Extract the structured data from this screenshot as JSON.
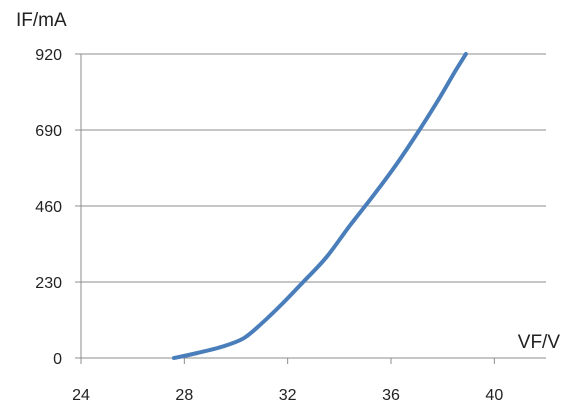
{
  "chart_data": {
    "type": "line",
    "title": "",
    "xlabel": "VF/V",
    "ylabel": "IF/mA",
    "xlim": [
      24,
      42
    ],
    "ylim": [
      0,
      920
    ],
    "x_ticks": [
      24,
      28,
      32,
      36,
      40
    ],
    "y_ticks": [
      0,
      230,
      460,
      690,
      920
    ],
    "x_tick_labels": [
      "24",
      "28",
      "32",
      "36",
      "40"
    ],
    "y_tick_labels": [
      "0",
      "230",
      "460",
      "690",
      "920"
    ],
    "grid": "horizontal",
    "colors": {
      "line": "#4a7ebb",
      "grid": "#8c8c8c",
      "axis": "#8c8c8c"
    },
    "series": [
      {
        "x": [
          27.6,
          28.5,
          29.5,
          30.3,
          31.0,
          31.8,
          32.6,
          33.5,
          34.4,
          35.3,
          36.2,
          37.1,
          37.9,
          38.5,
          38.9
        ],
        "y": [
          0,
          15,
          35,
          60,
          105,
          165,
          230,
          305,
          400,
          490,
          585,
          690,
          790,
          870,
          920
        ]
      }
    ]
  }
}
